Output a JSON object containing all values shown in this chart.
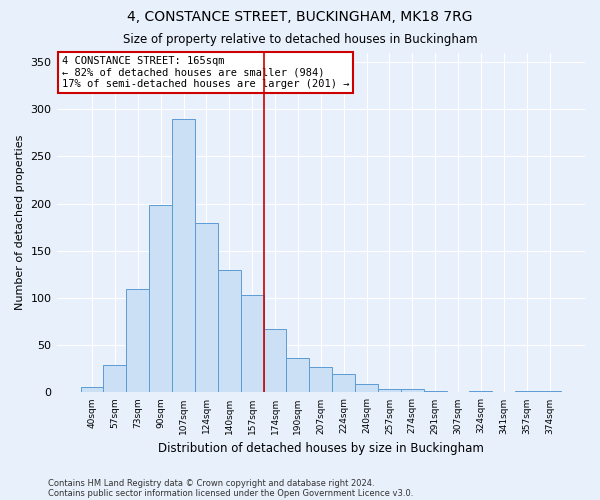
{
  "title": "4, CONSTANCE STREET, BUCKINGHAM, MK18 7RG",
  "subtitle": "Size of property relative to detached houses in Buckingham",
  "xlabel": "Distribution of detached houses by size in Buckingham",
  "ylabel": "Number of detached properties",
  "bar_color": "#cce0f5",
  "bar_edge_color": "#5b9bd5",
  "background_color": "#e8f0fb",
  "grid_color": "#ffffff",
  "categories": [
    "40sqm",
    "57sqm",
    "73sqm",
    "90sqm",
    "107sqm",
    "124sqm",
    "140sqm",
    "157sqm",
    "174sqm",
    "190sqm",
    "207sqm",
    "224sqm",
    "240sqm",
    "257sqm",
    "274sqm",
    "291sqm",
    "307sqm",
    "324sqm",
    "341sqm",
    "357sqm",
    "374sqm"
  ],
  "values": [
    6,
    29,
    110,
    198,
    290,
    179,
    130,
    103,
    67,
    36,
    27,
    20,
    9,
    4,
    4,
    1,
    0,
    1,
    0,
    1,
    2
  ],
  "vline_x": 8.0,
  "vline_color": "#cc0000",
  "annotation_text": "4 CONSTANCE STREET: 165sqm\n← 82% of detached houses are smaller (984)\n17% of semi-detached houses are larger (201) →",
  "annotation_box_color": "#ffffff",
  "annotation_box_edge": "#cc0000",
  "ylim": [
    0,
    360
  ],
  "yticks": [
    0,
    50,
    100,
    150,
    200,
    250,
    300,
    350
  ],
  "footer1": "Contains HM Land Registry data © Crown copyright and database right 2024.",
  "footer2": "Contains public sector information licensed under the Open Government Licence v3.0."
}
